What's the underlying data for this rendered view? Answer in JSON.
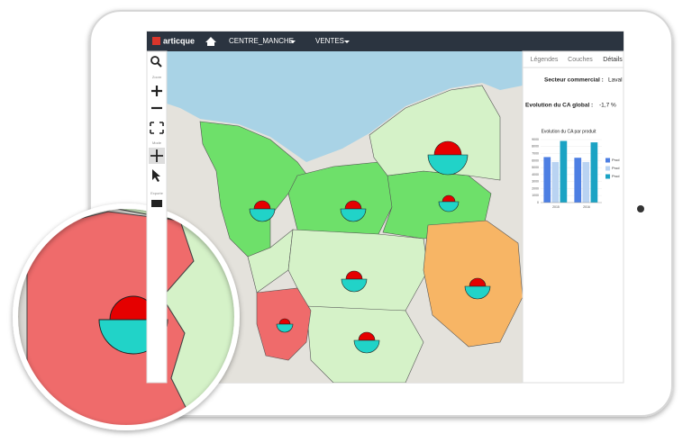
{
  "app": {
    "logo": "articque",
    "nav": [
      "CENTRE_MANCHE",
      "VENTES"
    ],
    "tools": [
      "Zoom",
      "Mode",
      "Exporte"
    ],
    "tabs": [
      "Légendes",
      "Couches",
      "Détails"
    ],
    "sector_label": "Secteur commercial :",
    "sector_value": "Laval",
    "evolution_label": "Evolution du CA global :",
    "evolution_value": "-1,7 %"
  },
  "chart_data": {
    "type": "bar",
    "title": "Evolution du CA par produit",
    "categories": [
      "2015",
      "2016"
    ],
    "series": [
      {
        "name": "Prod",
        "color": "#4d7fe3",
        "values": [
          6500,
          6400
        ]
      },
      {
        "name": "Prod",
        "color": "#b9d3f2",
        "values": [
          5800,
          5800
        ]
      },
      {
        "name": "Prod",
        "color": "#1ba3c4",
        "values": [
          8800,
          8600
        ]
      }
    ],
    "ylim": [
      0,
      9000
    ],
    "yticks": [
      0,
      1000,
      2000,
      3000,
      4000,
      5000,
      6000,
      7000,
      8000,
      9000
    ],
    "grid": true,
    "legend": "right"
  }
}
